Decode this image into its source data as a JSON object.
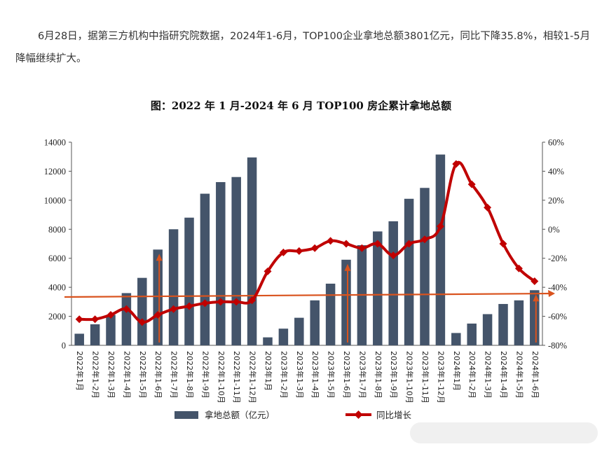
{
  "article": {
    "paragraph": "6月28日，据第三方机构中指研究院数据，2024年1-6月，TOP100企业拿地总额3801亿元，同比下降35.8%，相较1-5月降幅继续扩大。"
  },
  "chart_data": {
    "type": "bar",
    "title": "图：2022 年 1 月-2024 年 6 月 TOP100 房企累计拿地总额",
    "categories": [
      "2022年1月",
      "2022年1-2月",
      "2022年1-3月",
      "2022年1-4月",
      "2022年1-5月",
      "2022年1-6月",
      "2022年1-7月",
      "2022年1-8月",
      "2022年1-9月",
      "2022年1-10月",
      "2022年1-11月",
      "2022年1-12月",
      "2023年1月",
      "2023年1-2月",
      "2023年1-3月",
      "2023年1-4月",
      "2023年1-5月",
      "2023年1-6月",
      "2023年1-7月",
      "2023年1-8月",
      "2023年1-9月",
      "2023年1-10月",
      "2023年1-11月",
      "2023年1-12月",
      "2024年1月",
      "2024年1-2月",
      "2024年1-3月",
      "2024年1-4月",
      "2024年1-5月",
      "2024年1-6月"
    ],
    "series": [
      {
        "name": "拿地总额（亿元）",
        "type": "bar",
        "axis": "left",
        "color": "#44546A",
        "values": [
          800,
          1450,
          2100,
          3600,
          4650,
          6600,
          8000,
          8800,
          10450,
          11250,
          11600,
          12950,
          550,
          1150,
          1900,
          3100,
          4250,
          5900,
          6900,
          7850,
          8550,
          10100,
          10850,
          13150,
          850,
          1500,
          2150,
          2850,
          3100,
          3801
        ]
      },
      {
        "name": "同比增长",
        "type": "line",
        "axis": "right",
        "color": "#C00000",
        "values": [
          -62,
          -62,
          -59,
          -55,
          -64,
          -59,
          -55,
          -53,
          -51,
          -50,
          -50,
          -49,
          -29,
          -16,
          -15,
          -13,
          -8,
          -10,
          -13,
          -10,
          -18,
          -10,
          -7,
          2,
          45,
          31,
          15,
          -10,
          -27,
          -35.8
        ]
      }
    ],
    "y_left": {
      "min": 0,
      "max": 14000,
      "step": 2000,
      "ticks": [
        "0",
        "2000",
        "4000",
        "6000",
        "8000",
        "10000",
        "12000",
        "14000"
      ]
    },
    "y_right": {
      "min": -80,
      "max": 60,
      "step": 20,
      "ticks": [
        "-80%",
        "-60%",
        "-40%",
        "-20%",
        "0%",
        "20%",
        "40%",
        "60%"
      ]
    },
    "legend": {
      "placement": "bottom"
    },
    "annotations": {
      "reference_line_value": 3801,
      "reference_line_color": "#D9531E",
      "arrow_color": "#D9531E",
      "arrows_at": [
        "2022年1-6月",
        "2023年1-6月",
        "2024年1-6月"
      ]
    },
    "grid": false
  }
}
